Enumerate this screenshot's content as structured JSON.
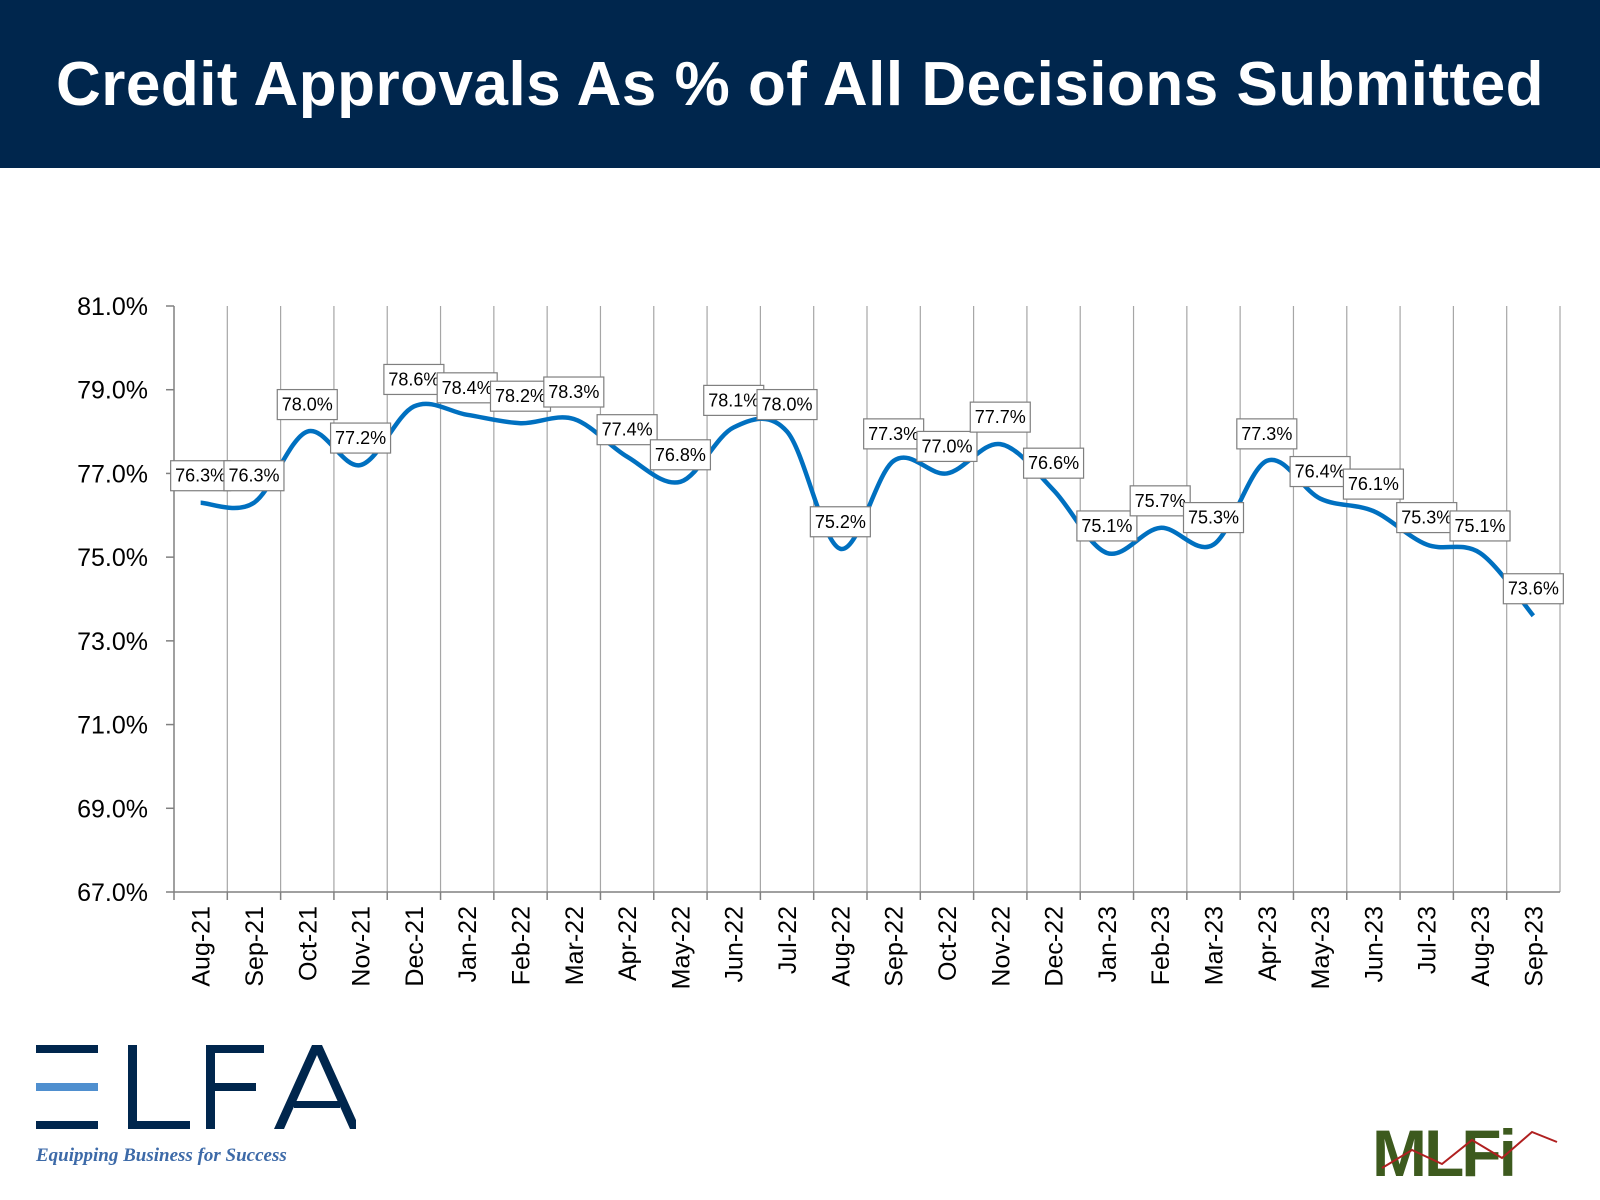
{
  "header": {
    "title": "Credit Approvals As % of All Decisions Submitted"
  },
  "logos": {
    "elfa_wordmark": "ELFA",
    "elfa_tagline": "Equipping Business for Success",
    "mlfi_wordmark": "MLFI"
  },
  "colors": {
    "header_bg": "#00264d",
    "line": "#0070c0",
    "grid": "#a6a6a6",
    "elfa_blue": "#00264d",
    "elfa_light": "#4f8fcf",
    "mlfi_green": "#3d5a1e"
  },
  "chart_data": {
    "type": "line",
    "title": "Credit Approvals As % of All Decisions Submitted",
    "xlabel": "",
    "ylabel": "",
    "ylim": [
      67.0,
      81.0
    ],
    "yticks": [
      "67.0%",
      "69.0%",
      "71.0%",
      "73.0%",
      "75.0%",
      "77.0%",
      "79.0%",
      "81.0%"
    ],
    "grid": "vertical",
    "legend": "none",
    "smooth": true,
    "categories": [
      "Aug-21",
      "Sep-21",
      "Oct-21",
      "Nov-21",
      "Dec-21",
      "Jan-22",
      "Feb-22",
      "Mar-22",
      "Apr-22",
      "May-22",
      "Jun-22",
      "Jul-22",
      "Aug-22",
      "Sep-22",
      "Oct-22",
      "Nov-22",
      "Dec-22",
      "Jan-23",
      "Feb-23",
      "Mar-23",
      "Apr-23",
      "May-23",
      "Jun-23",
      "Jul-23",
      "Aug-23",
      "Sep-23"
    ],
    "values": [
      76.3,
      76.3,
      78.0,
      77.2,
      78.6,
      78.4,
      78.2,
      78.3,
      77.4,
      76.8,
      78.1,
      78.0,
      75.2,
      77.3,
      77.0,
      77.7,
      76.6,
      75.1,
      75.7,
      75.3,
      77.3,
      76.4,
      76.1,
      75.3,
      75.1,
      73.6
    ],
    "data_labels": [
      "76.3%",
      "76.3%",
      "78.0%",
      "77.2%",
      "78.6%",
      "78.4%",
      "78.2%",
      "78.3%",
      "77.4%",
      "76.8%",
      "78.1%",
      "78.0%",
      "75.2%",
      "77.3%",
      "77.0%",
      "77.7%",
      "76.6%",
      "75.1%",
      "75.7%",
      "75.3%",
      "77.3%",
      "76.4%",
      "76.1%",
      "75.3%",
      "75.1%",
      "73.6%"
    ]
  }
}
